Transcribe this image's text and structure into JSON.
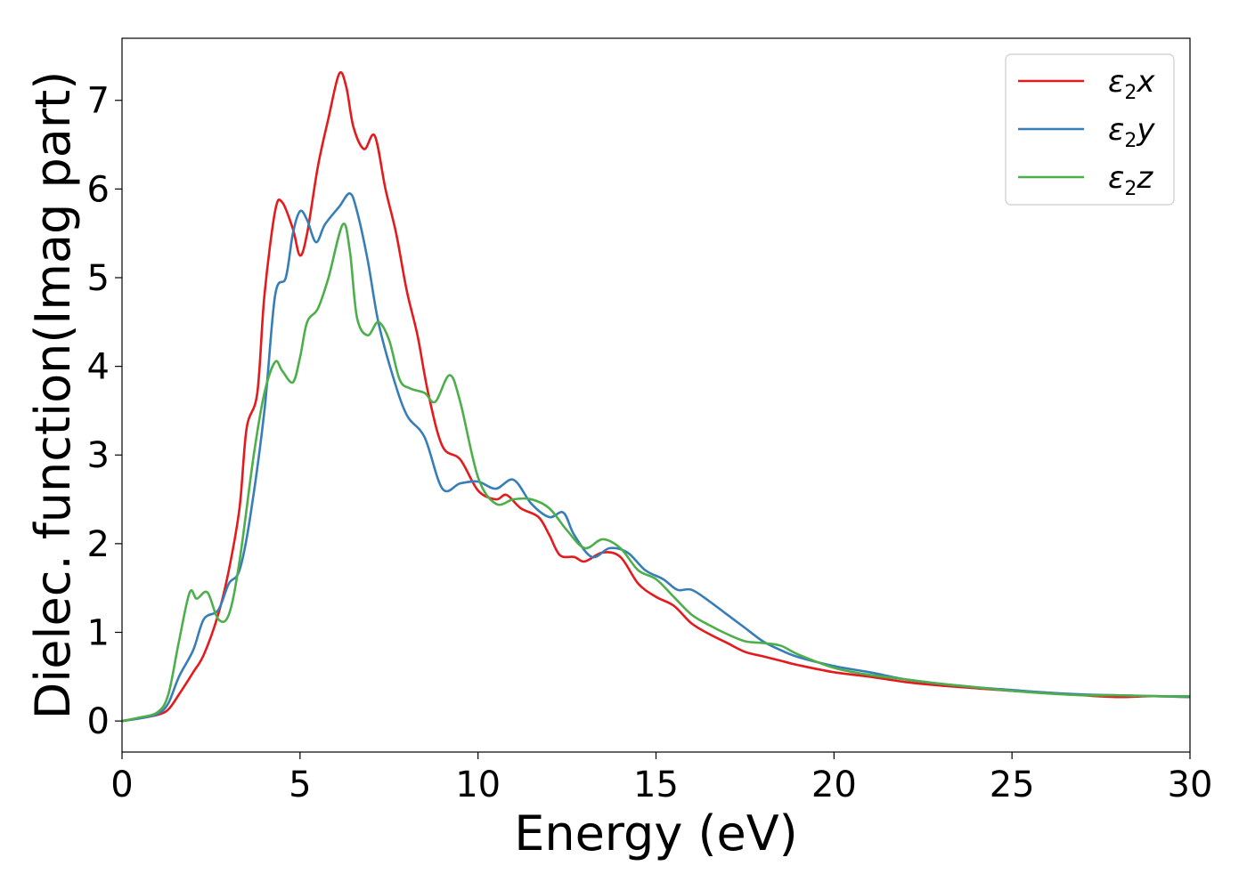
{
  "chart_data": {
    "type": "line",
    "xlabel": "Energy (eV)",
    "ylabel": "Dielec. function(Imag part)",
    "xlim": [
      0,
      30
    ],
    "ylim": [
      -0.35,
      7.7
    ],
    "xticks": [
      0,
      5,
      10,
      15,
      20,
      25,
      30
    ],
    "yticks": [
      0,
      1,
      2,
      3,
      4,
      5,
      6,
      7
    ],
    "grid": false,
    "legend_position": "top-right",
    "series": [
      {
        "name": "ε2x",
        "legend": {
          "base": "ε",
          "sub": "2",
          "suffix": "x"
        },
        "color": "#e41a1c",
        "x": [
          0,
          0.5,
          1,
          1.3,
          1.6,
          2,
          2.3,
          2.7,
          3,
          3.3,
          3.5,
          3.8,
          4,
          4.3,
          4.5,
          4.8,
          5,
          5.2,
          5.5,
          5.8,
          6.1,
          6.3,
          6.5,
          6.8,
          7.1,
          7.4,
          7.7,
          8,
          8.3,
          8.6,
          9,
          9.5,
          10,
          10.5,
          10.8,
          11.2,
          11.7,
          12,
          12.3,
          12.7,
          13,
          13.5,
          14,
          14.5,
          15,
          15.5,
          16,
          16.5,
          17,
          17.5,
          18,
          18.5,
          19,
          20,
          21,
          22,
          23,
          24,
          25,
          26,
          27,
          28,
          29,
          30
        ],
        "values": [
          0,
          0.03,
          0.07,
          0.13,
          0.3,
          0.55,
          0.75,
          1.2,
          1.7,
          2.4,
          3.3,
          3.7,
          4.8,
          5.75,
          5.85,
          5.55,
          5.25,
          5.5,
          6.25,
          6.8,
          7.3,
          7.15,
          6.7,
          6.45,
          6.6,
          6.0,
          5.5,
          4.85,
          4.35,
          3.7,
          3.1,
          2.95,
          2.6,
          2.5,
          2.55,
          2.4,
          2.3,
          2.1,
          1.87,
          1.85,
          1.8,
          1.9,
          1.85,
          1.55,
          1.4,
          1.3,
          1.1,
          0.98,
          0.88,
          0.78,
          0.73,
          0.68,
          0.63,
          0.55,
          0.5,
          0.44,
          0.4,
          0.37,
          0.34,
          0.32,
          0.29,
          0.27,
          0.28,
          0.27
        ]
      },
      {
        "name": "ε2y",
        "legend": {
          "base": "ε",
          "sub": "2",
          "suffix": "y"
        },
        "color": "#377eb8",
        "x": [
          0,
          0.5,
          1,
          1.3,
          1.6,
          2,
          2.3,
          2.7,
          3,
          3.3,
          3.6,
          4,
          4.3,
          4.6,
          4.8,
          5,
          5.2,
          5.45,
          5.7,
          6.1,
          6.4,
          6.6,
          6.9,
          7.2,
          7.6,
          8,
          8.5,
          9,
          9.5,
          10,
          10.5,
          11,
          11.5,
          12,
          12.4,
          12.7,
          13.2,
          13.7,
          14.2,
          14.7,
          15.2,
          15.6,
          16,
          16.5,
          17,
          17.5,
          18,
          18.5,
          19,
          20,
          21,
          22,
          23,
          24,
          25,
          26,
          27,
          28,
          29,
          30
        ],
        "values": [
          0,
          0.03,
          0.08,
          0.2,
          0.5,
          0.8,
          1.15,
          1.25,
          1.55,
          1.7,
          2.3,
          3.5,
          4.8,
          5.0,
          5.5,
          5.75,
          5.65,
          5.4,
          5.6,
          5.8,
          5.95,
          5.75,
          5.2,
          4.5,
          3.9,
          3.45,
          3.2,
          2.62,
          2.68,
          2.7,
          2.62,
          2.72,
          2.45,
          2.3,
          2.35,
          2.1,
          1.85,
          1.95,
          1.9,
          1.7,
          1.6,
          1.48,
          1.48,
          1.35,
          1.2,
          1.05,
          0.9,
          0.8,
          0.72,
          0.62,
          0.55,
          0.47,
          0.42,
          0.38,
          0.35,
          0.32,
          0.3,
          0.29,
          0.28,
          0.27
        ]
      },
      {
        "name": "ε2z",
        "legend": {
          "base": "ε",
          "sub": "2",
          "suffix": "z"
        },
        "color": "#4daf4a",
        "x": [
          0,
          0.5,
          1,
          1.3,
          1.6,
          1.9,
          2.1,
          2.4,
          2.7,
          3,
          3.3,
          3.7,
          4,
          4.3,
          4.5,
          4.8,
          5,
          5.2,
          5.5,
          5.8,
          6.2,
          6.4,
          6.6,
          6.9,
          7.2,
          7.5,
          7.8,
          8.1,
          8.5,
          8.8,
          9.2,
          9.5,
          10,
          10.5,
          11,
          11.5,
          12,
          12.5,
          13,
          13.5,
          14,
          14.5,
          15,
          15.5,
          16,
          16.5,
          17,
          17.5,
          18,
          18.5,
          19,
          20,
          21,
          22,
          23,
          24,
          25,
          26,
          27,
          28,
          29,
          30
        ],
        "values": [
          0,
          0.04,
          0.1,
          0.3,
          0.9,
          1.45,
          1.38,
          1.45,
          1.15,
          1.2,
          1.8,
          3.0,
          3.7,
          4.05,
          3.95,
          3.82,
          4.1,
          4.5,
          4.65,
          5.0,
          5.6,
          5.3,
          4.55,
          4.35,
          4.5,
          4.3,
          3.85,
          3.75,
          3.7,
          3.6,
          3.9,
          3.6,
          2.75,
          2.45,
          2.5,
          2.5,
          2.4,
          2.15,
          1.95,
          2.05,
          1.95,
          1.7,
          1.6,
          1.4,
          1.2,
          1.08,
          0.98,
          0.9,
          0.88,
          0.85,
          0.75,
          0.6,
          0.52,
          0.47,
          0.42,
          0.38,
          0.34,
          0.31,
          0.29,
          0.29,
          0.28,
          0.28
        ]
      }
    ]
  }
}
